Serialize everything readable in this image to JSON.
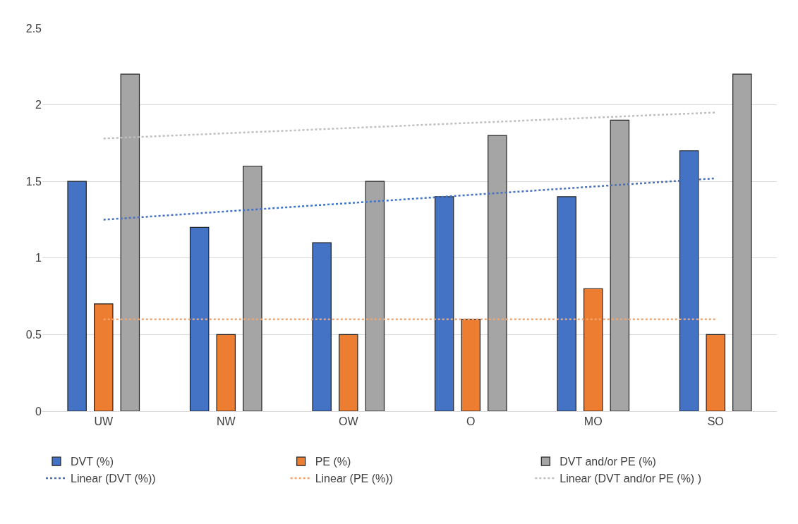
{
  "chart_data": {
    "type": "bar",
    "categories": [
      "UW",
      "NW",
      "OW",
      "O",
      "MO",
      "SO"
    ],
    "series": [
      {
        "name": "DVT (%)",
        "color": "#4472c4",
        "values": [
          1.5,
          1.2,
          1.1,
          1.4,
          1.4,
          1.7
        ]
      },
      {
        "name": "PE (%)",
        "color": "#ed7d31",
        "values": [
          0.7,
          0.5,
          0.5,
          0.6,
          0.8,
          0.5
        ]
      },
      {
        "name": "DVT and/or PE (%)",
        "color": "#a5a5a5",
        "values": [
          2.2,
          1.6,
          1.5,
          1.8,
          1.9,
          2.2
        ]
      },
      {
        "name": "Linear (DVT (%))",
        "type": "line",
        "line_style": "dotted",
        "color": "#4472c4",
        "x": [
          "UW",
          "SO"
        ],
        "values": [
          1.25,
          1.52
        ]
      },
      {
        "name": "Linear (PE (%))",
        "type": "line",
        "line_style": "dotted",
        "color": "#f4a46c",
        "x": [
          "UW",
          "SO"
        ],
        "values": [
          0.6,
          0.6
        ]
      },
      {
        "name": "Linear (DVT and/or PE (%) )",
        "type": "line",
        "line_style": "dotted",
        "color": "#bfbfbf",
        "x": [
          "UW",
          "SO"
        ],
        "values": [
          1.78,
          1.95
        ]
      }
    ],
    "ylim": [
      0,
      2.5
    ],
    "yticks": [
      0,
      0.5,
      1,
      1.5,
      2,
      2.5
    ],
    "grid": "y",
    "legend": "bottom"
  }
}
